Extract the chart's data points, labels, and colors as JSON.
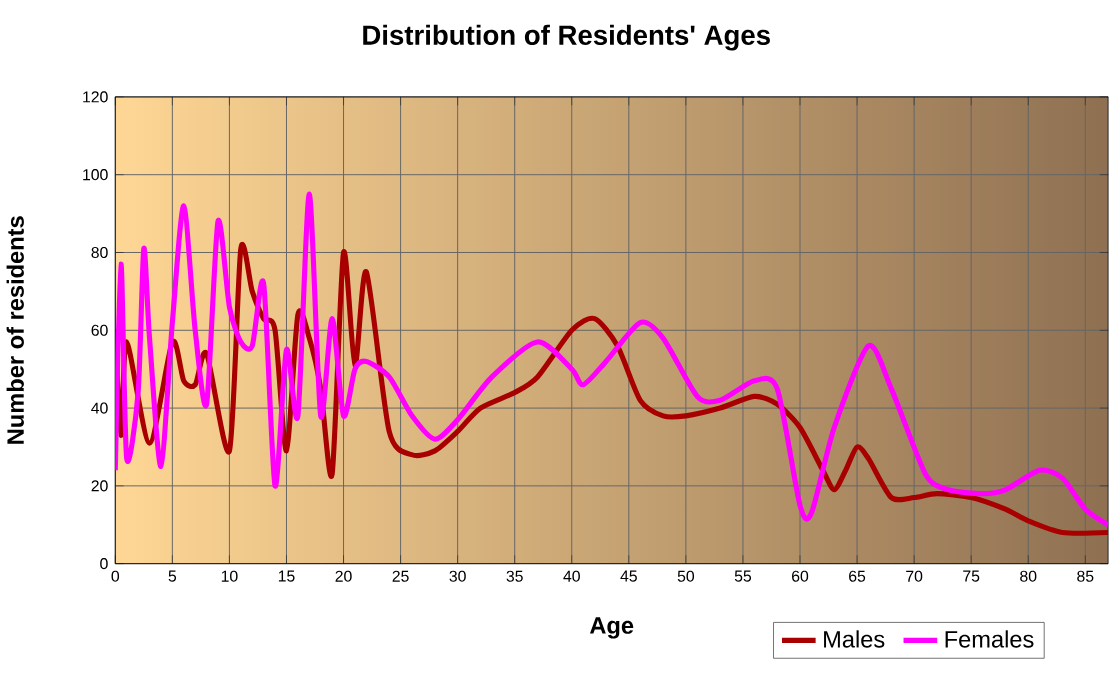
{
  "chart_data": {
    "type": "line",
    "title": "Distribution of Residents' Ages",
    "xlabel": "Age",
    "ylabel": "Number of residents",
    "xlim": [
      0,
      87
    ],
    "xticks": [
      0,
      5,
      10,
      15,
      20,
      25,
      30,
      35,
      40,
      45,
      50,
      55,
      60,
      65,
      70,
      75,
      80,
      85
    ],
    "ylim": [
      0,
      120
    ],
    "yticks": [
      0,
      20,
      40,
      60,
      80,
      100,
      120
    ],
    "grid": true,
    "legend": "bottom right",
    "series": [
      {
        "name": "Males",
        "color": "#a80000",
        "x": [
          0,
          0.5,
          1,
          3,
          5,
          6,
          7,
          8,
          10,
          11,
          12,
          13,
          14,
          15,
          16,
          17,
          18,
          19,
          20,
          21,
          22,
          24,
          26,
          28,
          30,
          32,
          35,
          37,
          40,
          42,
          44,
          46,
          48,
          50,
          53,
          56,
          58,
          60,
          62,
          63,
          64,
          65,
          66,
          68,
          70,
          72,
          75,
          78,
          80,
          83,
          87
        ],
        "values": [
          60,
          33,
          57,
          31,
          57,
          47,
          46,
          54,
          29,
          81,
          70,
          63,
          60,
          29,
          64,
          58,
          45,
          23,
          80,
          51,
          75,
          34,
          28,
          29,
          34,
          40,
          44,
          48,
          60,
          63,
          56,
          42,
          38,
          38,
          40,
          43,
          41,
          35,
          24,
          19,
          24,
          30,
          27,
          17,
          17,
          18,
          17,
          14,
          11,
          8,
          8
        ]
      },
      {
        "name": "Females",
        "color": "#ff00ff",
        "x": [
          0,
          0.5,
          1,
          2,
          2.5,
          3,
          4,
          5,
          6,
          7,
          8,
          9,
          10,
          11,
          12,
          13,
          14,
          15,
          16,
          17,
          18,
          19,
          20,
          21,
          22,
          24,
          26,
          28,
          30,
          33,
          37,
          40,
          41,
          43,
          46,
          48,
          51,
          53,
          56,
          58,
          60,
          61,
          63,
          66,
          68,
          71,
          73,
          76,
          78,
          81,
          83,
          85,
          87
        ],
        "values": [
          24,
          77,
          27,
          44,
          81,
          58,
          25,
          62,
          92,
          60,
          41,
          88,
          66,
          57,
          56,
          72,
          20,
          55,
          38,
          95,
          38,
          63,
          38,
          50,
          52,
          48,
          38,
          32,
          37,
          48,
          57,
          50,
          46,
          52,
          62,
          58,
          43,
          42,
          47,
          45,
          15,
          13,
          35,
          56,
          45,
          23,
          19,
          18,
          19,
          24,
          22,
          14,
          10
        ]
      }
    ]
  }
}
